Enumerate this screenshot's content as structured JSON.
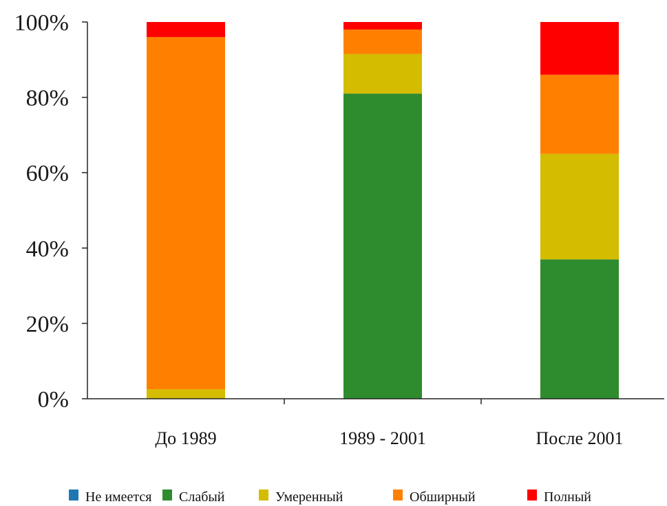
{
  "chart_data": {
    "type": "bar",
    "stacked": true,
    "categories": [
      "До 1989",
      "1989 - 2001",
      "После 2001"
    ],
    "series": [
      {
        "name": "Не имеется",
        "color": "#1f77b4",
        "values": [
          0,
          0,
          0
        ]
      },
      {
        "name": "Слабый",
        "color": "#2e8b2e",
        "values": [
          0,
          81,
          37
        ]
      },
      {
        "name": "Умеренный",
        "color": "#d4bc00",
        "values": [
          2.5,
          10.5,
          28
        ]
      },
      {
        "name": "Обширный",
        "color": "#ff8000",
        "values": [
          93.5,
          6.5,
          21
        ]
      },
      {
        "name": "Полный",
        "color": "#ff0000",
        "values": [
          4,
          2,
          14
        ]
      }
    ],
    "ylim": [
      0,
      100
    ],
    "yticks": [
      "0%",
      "20%",
      "40%",
      "60%",
      "80%",
      "100%"
    ],
    "grid": false,
    "legend_position": "bottom"
  }
}
